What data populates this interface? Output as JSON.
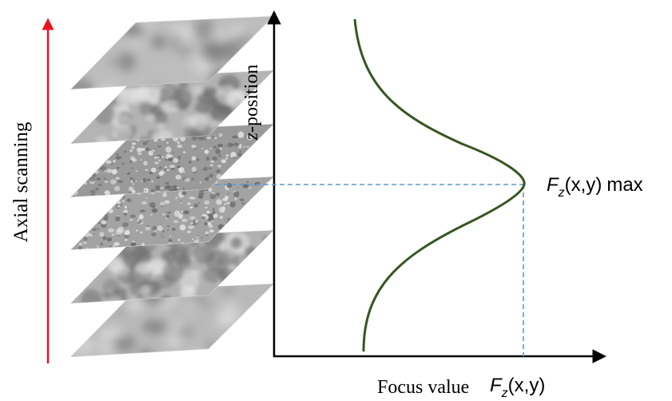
{
  "left_axis_label": "Axial scanning",
  "vertical_axis": {
    "italic_prefix": "z",
    "rest": "-position"
  },
  "horizontal_axis": {
    "label": "Focus value",
    "symbol_main": "F",
    "symbol_sub": "z",
    "symbol_args": "(x,y)"
  },
  "peak_label": {
    "symbol_main": "F",
    "symbol_sub": "z",
    "symbol_args": "(x,y)",
    "suffix": "max"
  },
  "image_stack": {
    "count": 6,
    "slices": [
      {
        "texture": "smooth",
        "tone": "#bdbdbd"
      },
      {
        "texture": "blurred",
        "tone": "#b4b4b4"
      },
      {
        "texture": "sharp",
        "tone": "#9a9a9a"
      },
      {
        "texture": "sharp",
        "tone": "#a3a3a3"
      },
      {
        "texture": "blurred",
        "tone": "#b1b1b1"
      },
      {
        "texture": "smooth",
        "tone": "#b9b9b9"
      }
    ]
  },
  "colors": {
    "scan_arrow": "#e8141c",
    "focus_curve": "#375623",
    "guide_lines": "#5b9bd5",
    "axes": "#000000"
  }
}
